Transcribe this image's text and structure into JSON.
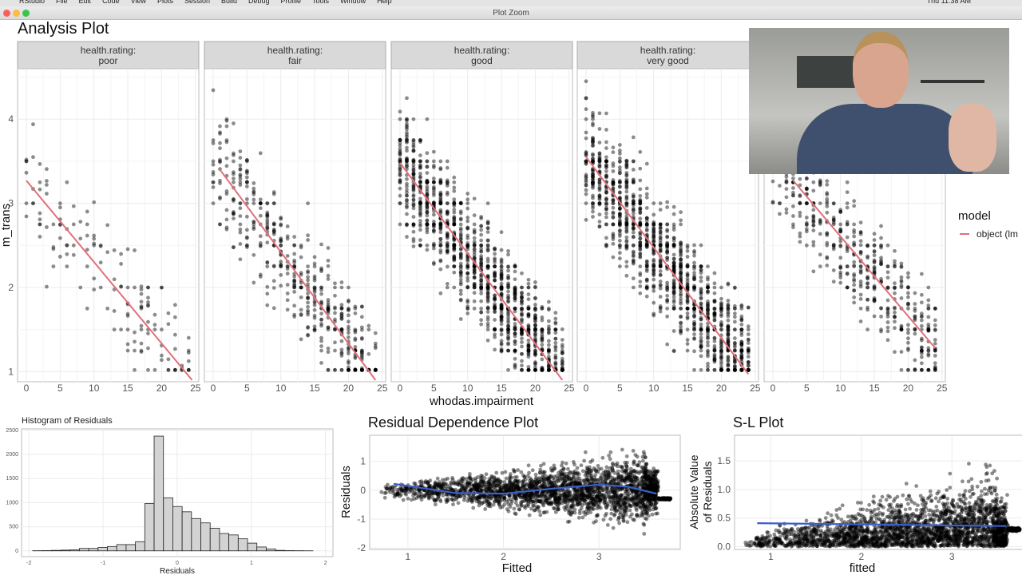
{
  "menubar": {
    "items": [
      "RStudio",
      "File",
      "Edit",
      "Code",
      "View",
      "Plots",
      "Session",
      "Build",
      "Debug",
      "Profile",
      "Tools",
      "Window",
      "Help"
    ],
    "clock": "Thu 11:38 AM"
  },
  "window": {
    "title": "Plot Zoom"
  },
  "colors": {
    "fit_line": "#e0707a",
    "smooth_line": "#3a5fcd",
    "points": "#000000",
    "strip": "#d9d9d9",
    "hist_fill": "#d3d3d3"
  },
  "chart_data": [
    {
      "type": "scatter",
      "title": "Analysis Plot",
      "xlabel": "whodas.impairment",
      "ylabel": "m_trans",
      "xlim": [
        -1.3,
        25.5
      ],
      "ylim": [
        0.88,
        4.6
      ],
      "xticks": [
        "0",
        "5",
        "10",
        "15",
        "20",
        "25"
      ],
      "yticks": [
        "1",
        "2",
        "3",
        "4"
      ],
      "grid": true,
      "facets": [
        {
          "strip": [
            "health.rating:",
            "poor"
          ],
          "fit": [
            [
              0,
              3.27
            ],
            [
              24.5,
              0.86
            ]
          ]
        },
        {
          "strip": [
            "health.rating:",
            "fair"
          ],
          "fit": [
            [
              1,
              3.4
            ],
            [
              24,
              0.9
            ]
          ]
        },
        {
          "strip": [
            "health.rating:",
            "good"
          ],
          "fit": [
            [
              0,
              3.48
            ],
            [
              24,
              0.9
            ]
          ]
        },
        {
          "strip": [
            "health.rating:",
            "very good"
          ],
          "fit": [
            [
              0,
              3.55
            ],
            [
              24,
              0.97
            ]
          ]
        },
        {
          "strip": [
            "",
            ""
          ],
          "fit": [
            [
              3,
              3.27
            ],
            [
              24,
              1.28
            ]
          ]
        }
      ],
      "legend": {
        "title": "model",
        "entries": [
          "object (lm"
        ],
        "placement": "right"
      }
    },
    {
      "type": "bar",
      "title": "Histogram of Residuals",
      "xlabel": "Residuals",
      "ylabel": "",
      "xlim": [
        -2.1,
        2.1
      ],
      "ylim": [
        0,
        2500
      ],
      "xticks": [
        "-2",
        "-1",
        "0",
        "1",
        "2"
      ],
      "yticks": [
        "0",
        "500",
        "1000",
        "1500",
        "2000",
        "2500"
      ],
      "bin_start": -1.95,
      "bin_width": 0.126,
      "values": [
        3,
        5,
        10,
        15,
        20,
        50,
        50,
        70,
        90,
        130,
        130,
        190,
        980,
        2380,
        1100,
        920,
        810,
        670,
        580,
        470,
        360,
        330,
        250,
        160,
        80,
        40,
        10,
        5,
        3,
        1
      ]
    },
    {
      "type": "scatter",
      "title": "Residual Dependence Plot",
      "xlabel": "Fitted",
      "ylabel": "Residuals",
      "xlim": [
        0.6,
        3.85
      ],
      "ylim": [
        -2.05,
        1.9
      ],
      "xticks": [
        "1",
        "2",
        "3"
      ],
      "yticks": [
        "-2",
        "-1",
        "0",
        "1"
      ],
      "smooth": [
        [
          0.85,
          0.22
        ],
        [
          1.5,
          -0.1
        ],
        [
          2,
          -0.12
        ],
        [
          2.5,
          0.05
        ],
        [
          3,
          0.19
        ],
        [
          3.3,
          0.12
        ],
        [
          3.6,
          -0.12
        ]
      ]
    },
    {
      "type": "scatter",
      "title": "S-L Plot",
      "xlabel": "fitted",
      "ylabel": [
        "Absolute Value",
        "of Residuals"
      ],
      "xlim": [
        0.6,
        3.95
      ],
      "ylim": [
        -0.05,
        1.95
      ],
      "xticks": [
        "1",
        "2",
        "3"
      ],
      "yticks": [
        "0.0",
        "0.5",
        "1.0",
        "1.5"
      ],
      "smooth": [
        [
          0.85,
          0.41
        ],
        [
          3.6,
          0.36
        ]
      ]
    }
  ]
}
